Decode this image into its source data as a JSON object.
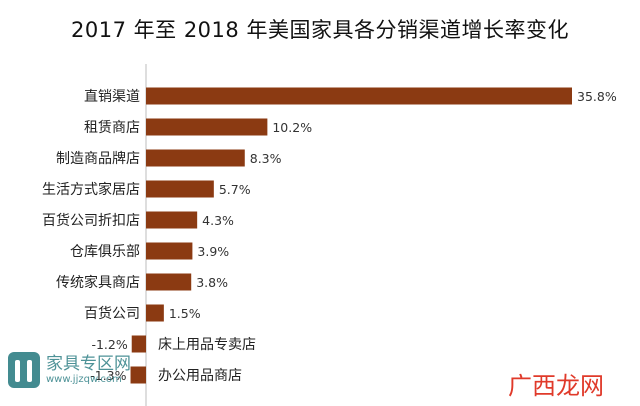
{
  "title": "2017 年至 2018 年美国家具各分销渠道增长率变化",
  "chart_data": {
    "type": "bar",
    "orientation": "horizontal",
    "categories": [
      "直销渠道",
      "租赁商店",
      "制造商品牌店",
      "生活方式家居店",
      "百货公司折扣店",
      "仓库俱乐部",
      "传统家具商店",
      "百货公司",
      "床上用品专卖店",
      "办公用品商店"
    ],
    "values": [
      35.8,
      10.2,
      8.3,
      5.7,
      4.3,
      3.9,
      3.8,
      1.5,
      -1.2,
      -1.3
    ],
    "value_labels": [
      "35.8%",
      "10.2%",
      "8.3%",
      "5.7%",
      "4.3%",
      "3.9%",
      "3.8%",
      "1.5%",
      "-1.2%",
      "-1.3%"
    ],
    "xlim": [
      -1.3,
      35.8
    ],
    "bar_color": "#8b3a12",
    "grid": false,
    "legend": "none"
  },
  "watermark_left": {
    "name": "家具专区网",
    "url": "www.jjzqw.com"
  },
  "watermark_right": "广西龙网"
}
